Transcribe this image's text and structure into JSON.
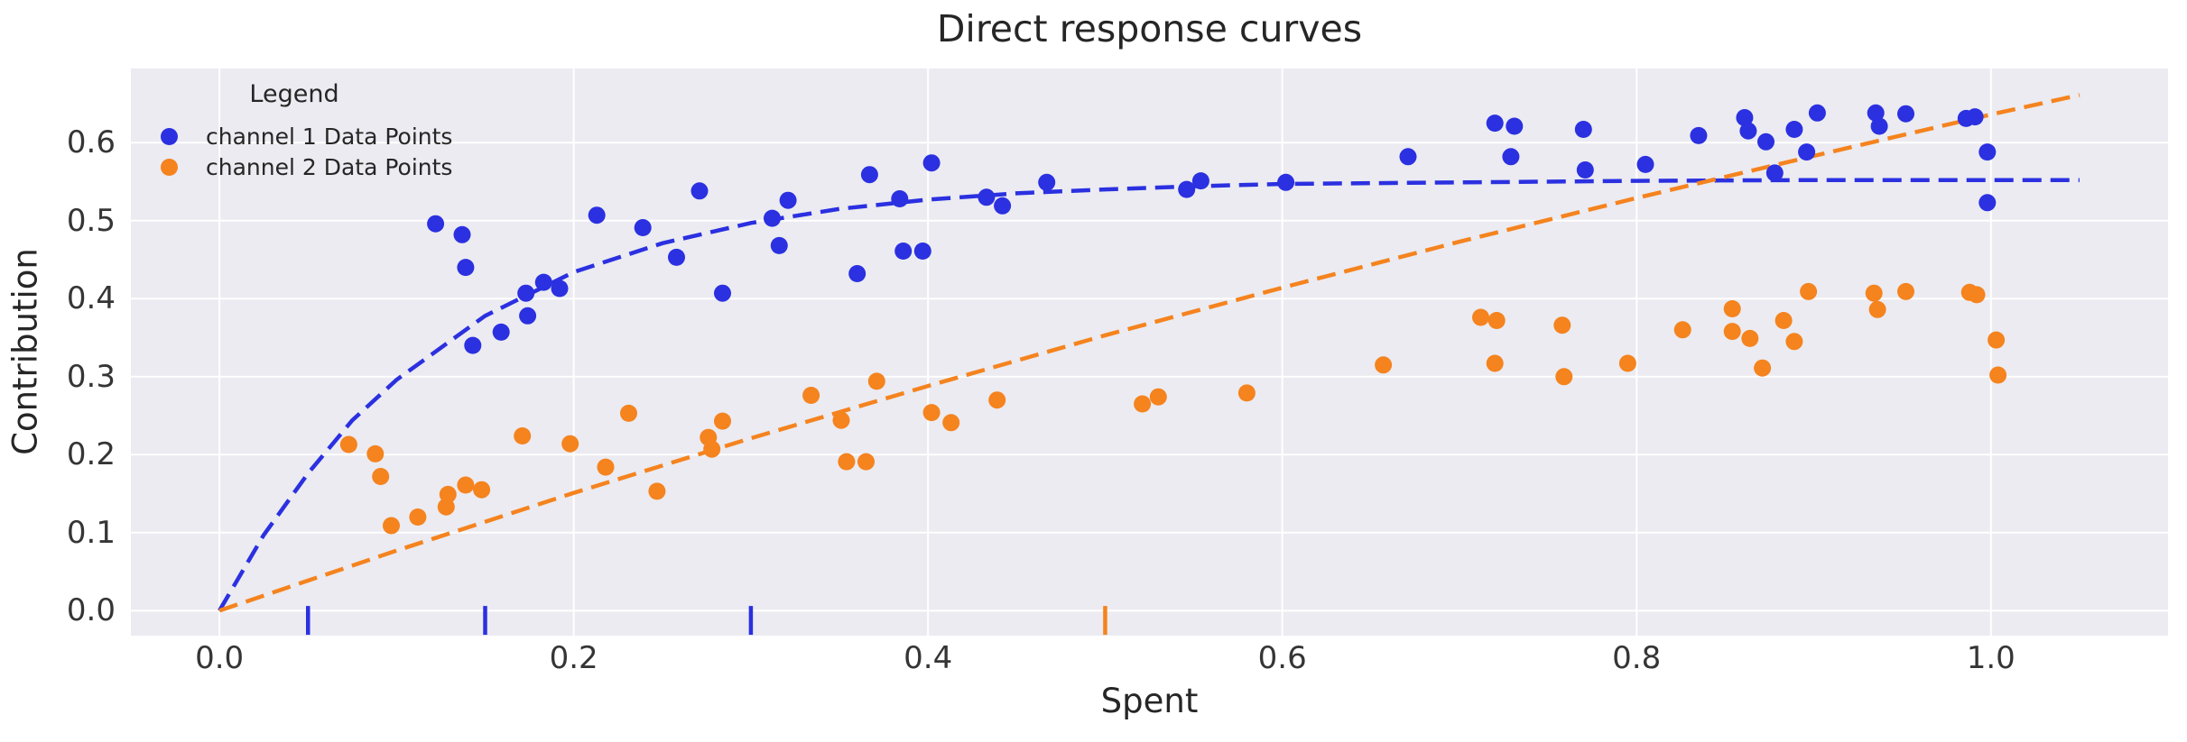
{
  "chart_data": {
    "type": "scatter",
    "title": "Direct response curves",
    "xlabel": "Spent",
    "ylabel": "Contribution",
    "xlim": [
      -0.05,
      1.1
    ],
    "ylim": [
      -0.032,
      0.695
    ],
    "grid": true,
    "background": "#ebebf1",
    "gridline_color": "#ffffff",
    "text_color": "#262626",
    "xticks": {
      "values": [
        0.0,
        0.2,
        0.4,
        0.6,
        0.8,
        1.0
      ],
      "labels": [
        "0.0",
        "0.2",
        "0.4",
        "0.6",
        "0.8",
        "1.0"
      ]
    },
    "yticks": {
      "values": [
        0.0,
        0.1,
        0.2,
        0.3,
        0.4,
        0.5,
        0.6
      ],
      "labels": [
        "0.0",
        "0.1",
        "0.2",
        "0.3",
        "0.4",
        "0.5",
        "0.6"
      ]
    },
    "legend": {
      "title": "Legend",
      "position": "upper left",
      "entries": [
        {
          "label": "channel 1 Data Points",
          "color": "#2b30e0"
        },
        {
          "label": "channel 2 Data Points",
          "color": "#f5831e"
        }
      ]
    },
    "series": [
      {
        "name": "channel 1 Data Points",
        "color": "#2b30e0",
        "marker": "circle",
        "points": [
          [
            0.122,
            0.496
          ],
          [
            0.137,
            0.482
          ],
          [
            0.139,
            0.44
          ],
          [
            0.143,
            0.34
          ],
          [
            0.159,
            0.357
          ],
          [
            0.173,
            0.407
          ],
          [
            0.174,
            0.378
          ],
          [
            0.183,
            0.421
          ],
          [
            0.192,
            0.413
          ],
          [
            0.213,
            0.507
          ],
          [
            0.239,
            0.491
          ],
          [
            0.258,
            0.453
          ],
          [
            0.271,
            0.538
          ],
          [
            0.284,
            0.407
          ],
          [
            0.312,
            0.503
          ],
          [
            0.316,
            0.468
          ],
          [
            0.321,
            0.526
          ],
          [
            0.36,
            0.432
          ],
          [
            0.367,
            0.559
          ],
          [
            0.384,
            0.528
          ],
          [
            0.386,
            0.461
          ],
          [
            0.397,
            0.461
          ],
          [
            0.402,
            0.574
          ],
          [
            0.433,
            0.53
          ],
          [
            0.442,
            0.519
          ],
          [
            0.467,
            0.549
          ],
          [
            0.546,
            0.54
          ],
          [
            0.554,
            0.551
          ],
          [
            0.602,
            0.549
          ],
          [
            0.671,
            0.582
          ],
          [
            0.72,
            0.625
          ],
          [
            0.731,
            0.621
          ],
          [
            0.729,
            0.582
          ],
          [
            0.77,
            0.617
          ],
          [
            0.771,
            0.565
          ],
          [
            0.805,
            0.572
          ],
          [
            0.835,
            0.609
          ],
          [
            0.861,
            0.632
          ],
          [
            0.863,
            0.615
          ],
          [
            0.873,
            0.601
          ],
          [
            0.878,
            0.561
          ],
          [
            0.889,
            0.617
          ],
          [
            0.896,
            0.588
          ],
          [
            0.902,
            0.638
          ],
          [
            0.935,
            0.638
          ],
          [
            0.937,
            0.621
          ],
          [
            0.952,
            0.637
          ],
          [
            0.986,
            0.631
          ],
          [
            0.991,
            0.633
          ],
          [
            0.998,
            0.588
          ],
          [
            0.998,
            0.523
          ]
        ]
      },
      {
        "name": "channel 2 Data Points",
        "color": "#f5831e",
        "marker": "circle",
        "points": [
          [
            0.073,
            0.213
          ],
          [
            0.088,
            0.201
          ],
          [
            0.091,
            0.172
          ],
          [
            0.097,
            0.109
          ],
          [
            0.112,
            0.12
          ],
          [
            0.128,
            0.133
          ],
          [
            0.129,
            0.149
          ],
          [
            0.139,
            0.161
          ],
          [
            0.148,
            0.155
          ],
          [
            0.171,
            0.224
          ],
          [
            0.198,
            0.214
          ],
          [
            0.218,
            0.184
          ],
          [
            0.231,
            0.253
          ],
          [
            0.247,
            0.153
          ],
          [
            0.276,
            0.222
          ],
          [
            0.278,
            0.207
          ],
          [
            0.284,
            0.243
          ],
          [
            0.334,
            0.276
          ],
          [
            0.351,
            0.244
          ],
          [
            0.354,
            0.191
          ],
          [
            0.365,
            0.191
          ],
          [
            0.371,
            0.294
          ],
          [
            0.402,
            0.254
          ],
          [
            0.413,
            0.241
          ],
          [
            0.439,
            0.27
          ],
          [
            0.521,
            0.265
          ],
          [
            0.53,
            0.274
          ],
          [
            0.58,
            0.279
          ],
          [
            0.657,
            0.315
          ],
          [
            0.712,
            0.376
          ],
          [
            0.721,
            0.372
          ],
          [
            0.72,
            0.317
          ],
          [
            0.758,
            0.366
          ],
          [
            0.759,
            0.3
          ],
          [
            0.795,
            0.317
          ],
          [
            0.826,
            0.36
          ],
          [
            0.854,
            0.387
          ],
          [
            0.854,
            0.358
          ],
          [
            0.864,
            0.349
          ],
          [
            0.871,
            0.311
          ],
          [
            0.883,
            0.372
          ],
          [
            0.889,
            0.345
          ],
          [
            0.897,
            0.409
          ],
          [
            0.934,
            0.407
          ],
          [
            0.936,
            0.386
          ],
          [
            0.952,
            0.409
          ],
          [
            0.988,
            0.408
          ],
          [
            0.992,
            0.405
          ],
          [
            1.003,
            0.347
          ],
          [
            1.004,
            0.302
          ]
        ]
      }
    ],
    "curves": [
      {
        "name": "channel 1 response curve",
        "color": "#2b30e0",
        "style": "dashed",
        "points": [
          [
            0,
            0
          ],
          [
            0.025,
            0.097
          ],
          [
            0.05,
            0.176
          ],
          [
            0.075,
            0.244
          ],
          [
            0.1,
            0.296
          ],
          [
            0.15,
            0.378
          ],
          [
            0.2,
            0.434
          ],
          [
            0.25,
            0.471
          ],
          [
            0.3,
            0.497
          ],
          [
            0.35,
            0.515
          ],
          [
            0.4,
            0.527
          ],
          [
            0.45,
            0.535
          ],
          [
            0.5,
            0.54
          ],
          [
            0.55,
            0.544
          ],
          [
            0.6,
            0.547
          ],
          [
            0.7,
            0.549
          ],
          [
            0.8,
            0.551
          ],
          [
            0.9,
            0.552
          ],
          [
            1.0,
            0.552
          ],
          [
            1.05,
            0.552
          ]
        ]
      },
      {
        "name": "channel 2 response curve",
        "color": "#f5831e",
        "style": "dashed",
        "points": [
          [
            0,
            0
          ],
          [
            0.1,
            0.077
          ],
          [
            0.2,
            0.151
          ],
          [
            0.3,
            0.221
          ],
          [
            0.4,
            0.288
          ],
          [
            0.5,
            0.353
          ],
          [
            0.6,
            0.414
          ],
          [
            0.7,
            0.473
          ],
          [
            0.8,
            0.529
          ],
          [
            0.9,
            0.583
          ],
          [
            1.0,
            0.636
          ],
          [
            1.05,
            0.661
          ]
        ]
      }
    ],
    "spend_markers": {
      "y_top": 0.006,
      "y_bottom": -0.031,
      "marks": [
        {
          "x": 0.05,
          "color": "#2b30e0"
        },
        {
          "x": 0.15,
          "color": "#2b30e0"
        },
        {
          "x": 0.3,
          "color": "#2b30e0"
        },
        {
          "x": 0.5,
          "color": "#f5831e"
        }
      ]
    }
  }
}
